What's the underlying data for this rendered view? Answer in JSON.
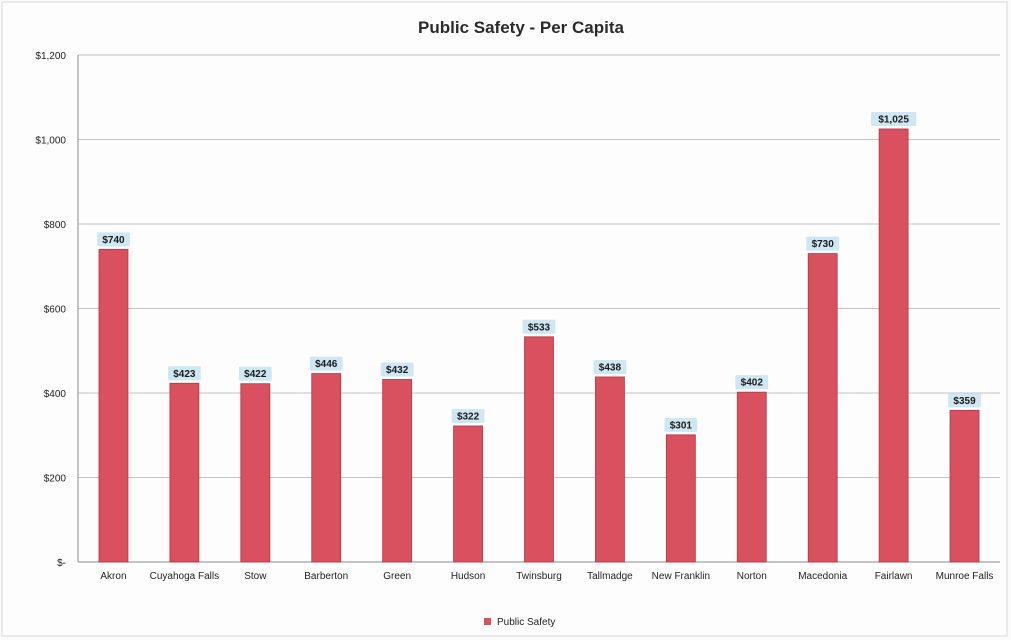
{
  "chart_data": {
    "type": "bar",
    "title": "Public Safety - Per Capita",
    "xlabel": "",
    "ylabel": "",
    "categories": [
      "Akron",
      "Cuyahoga Falls",
      "Stow",
      "Barberton",
      "Green",
      "Hudson",
      "Twinsburg",
      "Tallmadge",
      "New Franklin",
      "Norton",
      "Macedonia",
      "Fairlawn",
      "Munroe Falls"
    ],
    "series": [
      {
        "name": "Public Safety",
        "values": [
          740,
          423,
          422,
          446,
          432,
          322,
          533,
          438,
          301,
          402,
          730,
          1025,
          359
        ],
        "labels": [
          "$740",
          "$423",
          "$422",
          "$446",
          "$432",
          "$322",
          "$533",
          "$438",
          "$301",
          "$402",
          "$730",
          "$1,025",
          "$359"
        ]
      }
    ],
    "ylim": [
      0,
      1200
    ],
    "yticks": [
      0,
      200,
      400,
      600,
      800,
      1000,
      1200
    ],
    "ytick_labels": [
      "$-",
      "$200",
      "$400",
      "$600",
      "$800",
      "$1,000",
      "$1,200"
    ],
    "grid": true,
    "legend": "bottom",
    "colors": {
      "bar": "#d9505e",
      "bar_edge": "#b33645",
      "label_bg": "#cfe6f3",
      "grid": "#b0b0b0"
    }
  }
}
